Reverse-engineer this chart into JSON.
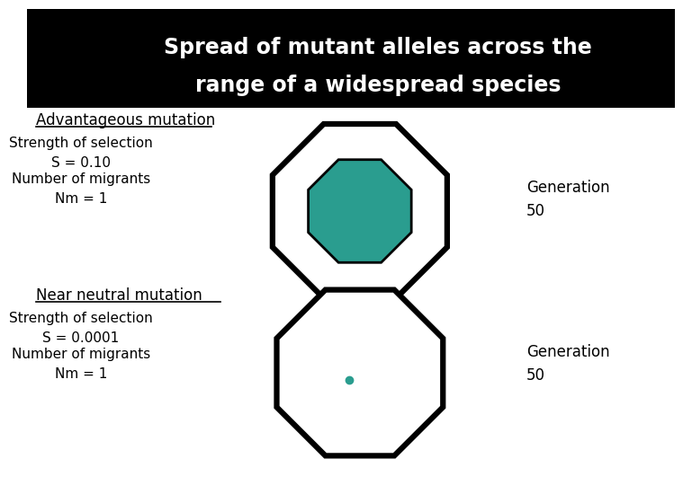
{
  "title_line1": "Spread of mutant alleles across the",
  "title_line2": "range of a widespread species",
  "header_bg": "#000000",
  "header_text_color": "#ffffff",
  "body_bg": "#ffffff",
  "body_text_color": "#000000",
  "label1_title": "Advantageous mutation",
  "label1_s": "Strength of selection\nS = 0.10",
  "label1_nm": "Number of migrants\nNm = 1",
  "label2_title": "Near neutral mutation",
  "label2_s": "Strength of selection\nS = 0.0001",
  "label2_nm": "Number of migrants\nNm = 1",
  "gen_label": "Generation\n50",
  "outer_oct_color": "#000000",
  "inner_oct_fill": "#2a9d8f",
  "inner_oct_edge": "#000000",
  "dot_color": "#2a9d8f",
  "dot_size": 6,
  "title_fontsize": 17,
  "label_title_fontsize": 12,
  "label_body_fontsize": 11,
  "gen_fontsize": 12
}
